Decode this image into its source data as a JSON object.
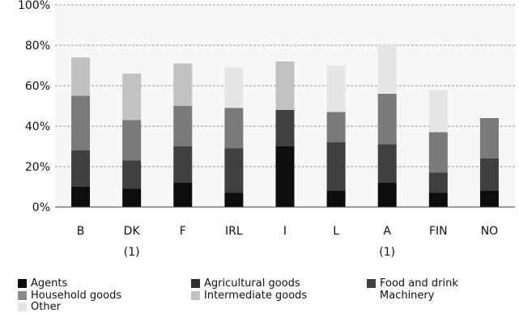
{
  "chart_data": {
    "type": "bar",
    "stacked": true,
    "title": "",
    "xlabel": "",
    "ylabel": "",
    "ylim": [
      0,
      100
    ],
    "yticks": [
      "0%",
      "20%",
      "40%",
      "60%",
      "80%",
      "100%"
    ],
    "grid": true,
    "legend_position": "bottom",
    "categories": [
      {
        "label": "B",
        "note": ""
      },
      {
        "label": "DK",
        "note": "(1)"
      },
      {
        "label": "F",
        "note": ""
      },
      {
        "label": "IRL",
        "note": ""
      },
      {
        "label": "I",
        "note": ""
      },
      {
        "label": "L",
        "note": ""
      },
      {
        "label": "A",
        "note": "(1)"
      },
      {
        "label": "FIN",
        "note": ""
      },
      {
        "label": "NO",
        "note": ""
      }
    ],
    "series": [
      {
        "name": "Agents",
        "color": "#0d0d0d",
        "values": [
          10,
          9,
          12,
          7,
          30,
          8,
          12,
          7,
          8
        ]
      },
      {
        "name": "Agricultural goods",
        "color": "#2e2e2e",
        "values": [
          0,
          0,
          0,
          0,
          0,
          0,
          0,
          0,
          0
        ]
      },
      {
        "name": "Food and drink",
        "color": "#404040",
        "values": [
          18,
          14,
          18,
          22,
          18,
          24,
          19,
          10,
          16
        ]
      },
      {
        "name": "Machinery",
        "color": "#7a7a7a",
        "values": [
          27,
          20,
          20,
          20,
          0,
          15,
          25,
          20,
          20
        ]
      },
      {
        "name": "Household goods",
        "color": "#8c8c8c",
        "values": [
          0,
          0,
          0,
          0,
          0,
          0,
          0,
          0,
          0
        ]
      },
      {
        "name": "Intermediate goods",
        "color": "#c2c2c2",
        "values": [
          19,
          23,
          21,
          0,
          24,
          0,
          0,
          0,
          0
        ]
      },
      {
        "name": "Other",
        "color": "#e6e6e6",
        "values": [
          0,
          0,
          0,
          20,
          0,
          23,
          24,
          21,
          0
        ]
      }
    ]
  }
}
